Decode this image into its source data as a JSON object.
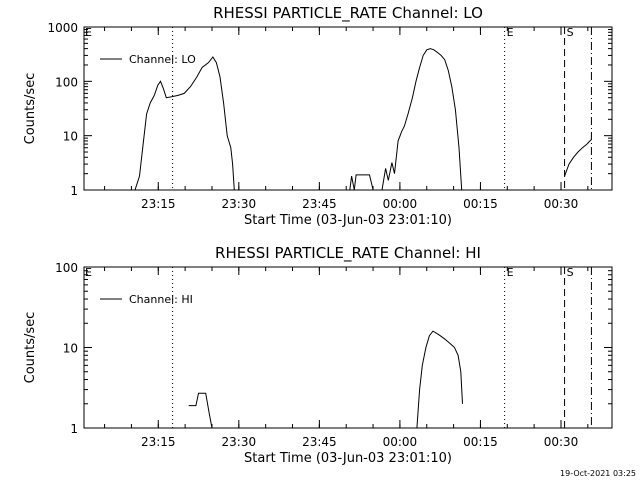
{
  "chart_data": [
    {
      "type": "line",
      "title": "RHESSI PARTICLE_RATE Channel: LO",
      "xlabel": "Start Time (03-Jun-03 23:01:10)",
      "ylabel": "Counts/sec",
      "yscale": "log",
      "ylim": [
        1,
        1000
      ],
      "xlim": [
        "23:01:10",
        "00:39:30"
      ],
      "x_ticks": [
        "23:15",
        "23:30",
        "23:45",
        "00:00",
        "00:15",
        "00:30"
      ],
      "y_ticks": [
        "1",
        "10",
        "100",
        "1000"
      ],
      "legend": {
        "entries": [
          "Channel: LO"
        ],
        "placement": "top-left"
      },
      "series": [
        {
          "name": "Channel: LO",
          "segments": [
            [
              [
                "23:10:40",
                1
              ],
              [
                "23:11:30",
                1.8
              ],
              [
                "23:12:15",
                8
              ],
              [
                "23:12:50",
                25
              ],
              [
                "23:13:30",
                40
              ],
              [
                "23:14:15",
                55
              ],
              [
                "23:14:55",
                85
              ],
              [
                "23:15:25",
                100
              ],
              [
                "23:15:55",
                75
              ],
              [
                "23:16:30",
                50
              ],
              [
                "23:17:30",
                52
              ],
              [
                "23:18:40",
                55
              ],
              [
                "23:19:50",
                60
              ],
              [
                "23:21:00",
                80
              ],
              [
                "23:22:10",
                120
              ],
              [
                "23:23:10",
                180
              ],
              [
                "23:24:20",
                220
              ],
              [
                "23:25:10",
                280
              ],
              [
                "23:25:50",
                220
              ],
              [
                "23:26:30",
                120
              ],
              [
                "23:27:10",
                40
              ],
              [
                "23:27:50",
                10
              ],
              [
                "23:28:30",
                6
              ],
              [
                "23:28:50",
                3
              ],
              [
                "23:29:10",
                1
              ]
            ],
            [
              [
                "23:50:40",
                1
              ],
              [
                "23:51:00",
                1.8
              ],
              [
                "23:51:30",
                1
              ],
              [
                "23:51:50",
                1.9
              ],
              [
                "23:54:20",
                1.9
              ],
              [
                "23:55:00",
                1
              ]
            ],
            [
              [
                "23:56:40",
                1
              ],
              [
                "23:57:20",
                2.5
              ],
              [
                "23:57:50",
                1.5
              ],
              [
                "23:58:30",
                3.2
              ],
              [
                "23:59:00",
                2
              ],
              [
                "23:59:40",
                8
              ],
              [
                "00:00:20",
                12
              ],
              [
                "00:00:50",
                15
              ],
              [
                "00:01:30",
                25
              ],
              [
                "00:02:20",
                50
              ],
              [
                "00:03:00",
                100
              ],
              [
                "00:03:40",
                180
              ],
              [
                "00:04:20",
                300
              ],
              [
                "00:05:00",
                380
              ],
              [
                "00:05:40",
                400
              ],
              [
                "00:06:20",
                380
              ],
              [
                "00:07:00",
                340
              ],
              [
                "00:07:40",
                300
              ],
              [
                "00:08:20",
                250
              ],
              [
                "00:09:00",
                160
              ],
              [
                "00:09:40",
                80
              ],
              [
                "00:10:20",
                30
              ],
              [
                "00:11:00",
                6
              ],
              [
                "00:11:30",
                1
              ]
            ],
            [
              [
                "00:30:40",
                1.8
              ],
              [
                "00:31:30",
                3
              ],
              [
                "00:32:20",
                4
              ],
              [
                "00:33:10",
                5
              ],
              [
                "00:34:00",
                6
              ],
              [
                "00:34:50",
                7
              ],
              [
                "00:35:40",
                8.5
              ]
            ]
          ]
        }
      ],
      "event_markers": [
        {
          "time": "23:17:40",
          "label": "",
          "style": "dotted"
        },
        {
          "time": "00:19:30",
          "label": "E",
          "style": "dotted"
        },
        {
          "time": "00:30:40",
          "label": "S",
          "style": "dashed"
        },
        {
          "time": "00:35:40",
          "label": "",
          "style": "dash-dot"
        }
      ],
      "corner_label": "E"
    },
    {
      "type": "line",
      "title": "RHESSI PARTICLE_RATE Channel: HI",
      "xlabel": "Start Time (03-Jun-03 23:01:10)",
      "ylabel": "Counts/sec",
      "yscale": "log",
      "ylim": [
        1,
        100
      ],
      "xlim": [
        "23:01:10",
        "00:39:30"
      ],
      "x_ticks": [
        "23:15",
        "23:30",
        "23:45",
        "00:00",
        "00:15",
        "00:30"
      ],
      "y_ticks": [
        "1",
        "10",
        "100"
      ],
      "legend": {
        "entries": [
          "Channel: HI"
        ],
        "placement": "top-left"
      },
      "series": [
        {
          "name": "Channel: HI",
          "segments": [
            [
              [
                "23:20:40",
                1.9
              ],
              [
                "23:22:00",
                1.9
              ],
              [
                "23:22:30",
                2.7
              ],
              [
                "23:23:50",
                2.7
              ],
              [
                "23:24:30",
                1.5
              ],
              [
                "23:25:00",
                1
              ]
            ],
            [
              [
                "00:03:10",
                1
              ],
              [
                "00:03:40",
                3
              ],
              [
                "00:04:10",
                6
              ],
              [
                "00:04:50",
                10
              ],
              [
                "00:05:30",
                14
              ],
              [
                "00:06:10",
                16
              ],
              [
                "00:06:50",
                15
              ],
              [
                "00:07:30",
                14
              ],
              [
                "00:08:10",
                13
              ],
              [
                "00:08:50",
                12
              ],
              [
                "00:09:30",
                11
              ],
              [
                "00:10:10",
                10
              ],
              [
                "00:10:50",
                8
              ],
              [
                "00:11:20",
                5
              ],
              [
                "00:11:40",
                2
              ]
            ]
          ]
        }
      ],
      "event_markers": [
        {
          "time": "23:17:40",
          "label": "",
          "style": "dotted"
        },
        {
          "time": "00:19:30",
          "label": "E",
          "style": "dotted"
        },
        {
          "time": "00:30:40",
          "label": "S",
          "style": "dashed"
        },
        {
          "time": "00:35:40",
          "label": "",
          "style": "dash-dot"
        }
      ],
      "corner_label": "E"
    }
  ],
  "timestamp": "19-Oct-2021 03:25"
}
